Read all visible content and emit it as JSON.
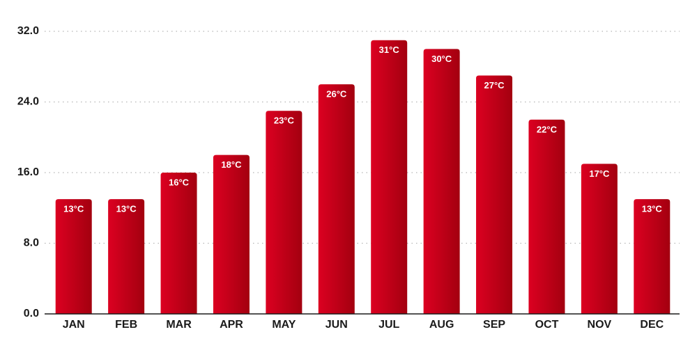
{
  "chart_data": {
    "type": "bar",
    "categories": [
      "JAN",
      "FEB",
      "MAR",
      "APR",
      "MAY",
      "JUN",
      "JUL",
      "AUG",
      "SEP",
      "OCT",
      "NOV",
      "DEC"
    ],
    "values": [
      13,
      13,
      16,
      18,
      23,
      26,
      31,
      30,
      27,
      22,
      17,
      13
    ],
    "value_labels": [
      "13°C",
      "13°C",
      "16°C",
      "18°C",
      "23°C",
      "26°C",
      "31°C",
      "30°C",
      "27°C",
      "22°C",
      "17°C",
      "13°C"
    ],
    "color": "#dc0021",
    "ylim": [
      0,
      32
    ],
    "yticks": [
      {
        "value": 0,
        "label": "0.0"
      },
      {
        "value": 8,
        "label": "8.0"
      },
      {
        "value": 16,
        "label": "16.0"
      },
      {
        "value": 24,
        "label": "24.0"
      },
      {
        "value": 32,
        "label": "32.0"
      }
    ],
    "grid": true
  }
}
